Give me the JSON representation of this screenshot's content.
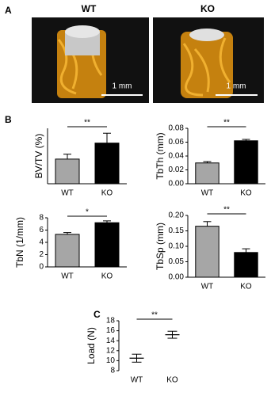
{
  "figure": {
    "panel_labels": [
      "A",
      "B",
      "C"
    ],
    "images": [
      {
        "label": "WT",
        "scale": "1 mm"
      },
      {
        "label": "KO",
        "scale": "1 mm"
      }
    ]
  },
  "chart_data": [
    {
      "type": "bar",
      "ylabel": "BV/TV (%)",
      "categories": [
        "WT",
        "KO"
      ],
      "values": [
        20,
        33
      ],
      "errors": [
        4,
        8
      ],
      "colors": [
        "#a6a6a6",
        "#000000"
      ],
      "ylim": [
        0,
        45
      ],
      "yticks": [],
      "annotation": "**"
    },
    {
      "type": "bar",
      "ylabel": "TbTh (mm)",
      "categories": [
        "WT",
        "KO"
      ],
      "values": [
        0.03,
        0.062
      ],
      "errors": [
        0.002,
        0.002
      ],
      "colors": [
        "#a6a6a6",
        "#000000"
      ],
      "ylim": [
        0,
        0.08
      ],
      "yticks": [
        {
          "value": 0,
          "label": "0.00"
        },
        {
          "value": 0.02,
          "label": "0.02"
        },
        {
          "value": 0.04,
          "label": "0.04"
        },
        {
          "value": 0.06,
          "label": "0.06"
        },
        {
          "value": 0.08,
          "label": "0.08"
        }
      ],
      "annotation": "**"
    },
    {
      "type": "bar",
      "ylabel": "TbN (1/mm)",
      "categories": [
        "WT",
        "KO"
      ],
      "values": [
        5.3,
        7.2
      ],
      "errors": [
        0.3,
        0.3
      ],
      "colors": [
        "#a6a6a6",
        "#000000"
      ],
      "ylim": [
        0,
        8
      ],
      "yticks": [
        0,
        2,
        4,
        6,
        8
      ],
      "annotation": "*"
    },
    {
      "type": "bar",
      "ylabel": "TbSp (mm)",
      "categories": [
        "WT",
        "KO"
      ],
      "values": [
        0.165,
        0.08
      ],
      "errors": [
        0.015,
        0.012
      ],
      "colors": [
        "#a6a6a6",
        "#000000"
      ],
      "ylim": [
        0,
        0.2
      ],
      "yticks": [
        {
          "value": 0,
          "label": "0.00"
        },
        {
          "value": 0.05,
          "label": "0.05"
        },
        {
          "value": 0.1,
          "label": "0.10"
        },
        {
          "value": 0.15,
          "label": "0.15"
        },
        {
          "value": 0.2,
          "label": "0.20"
        }
      ],
      "annotation": "**"
    },
    {
      "type": "errorbar",
      "ylabel": "Load (N)",
      "categories": [
        "WT",
        "KO"
      ],
      "values": [
        10.5,
        15.2
      ],
      "errors": [
        0.8,
        0.7
      ],
      "colors": [
        "#000000",
        "#000000"
      ],
      "ylim": [
        8,
        18
      ],
      "yticks": [
        8,
        10,
        12,
        14,
        16,
        18
      ],
      "annotation": "**"
    }
  ]
}
